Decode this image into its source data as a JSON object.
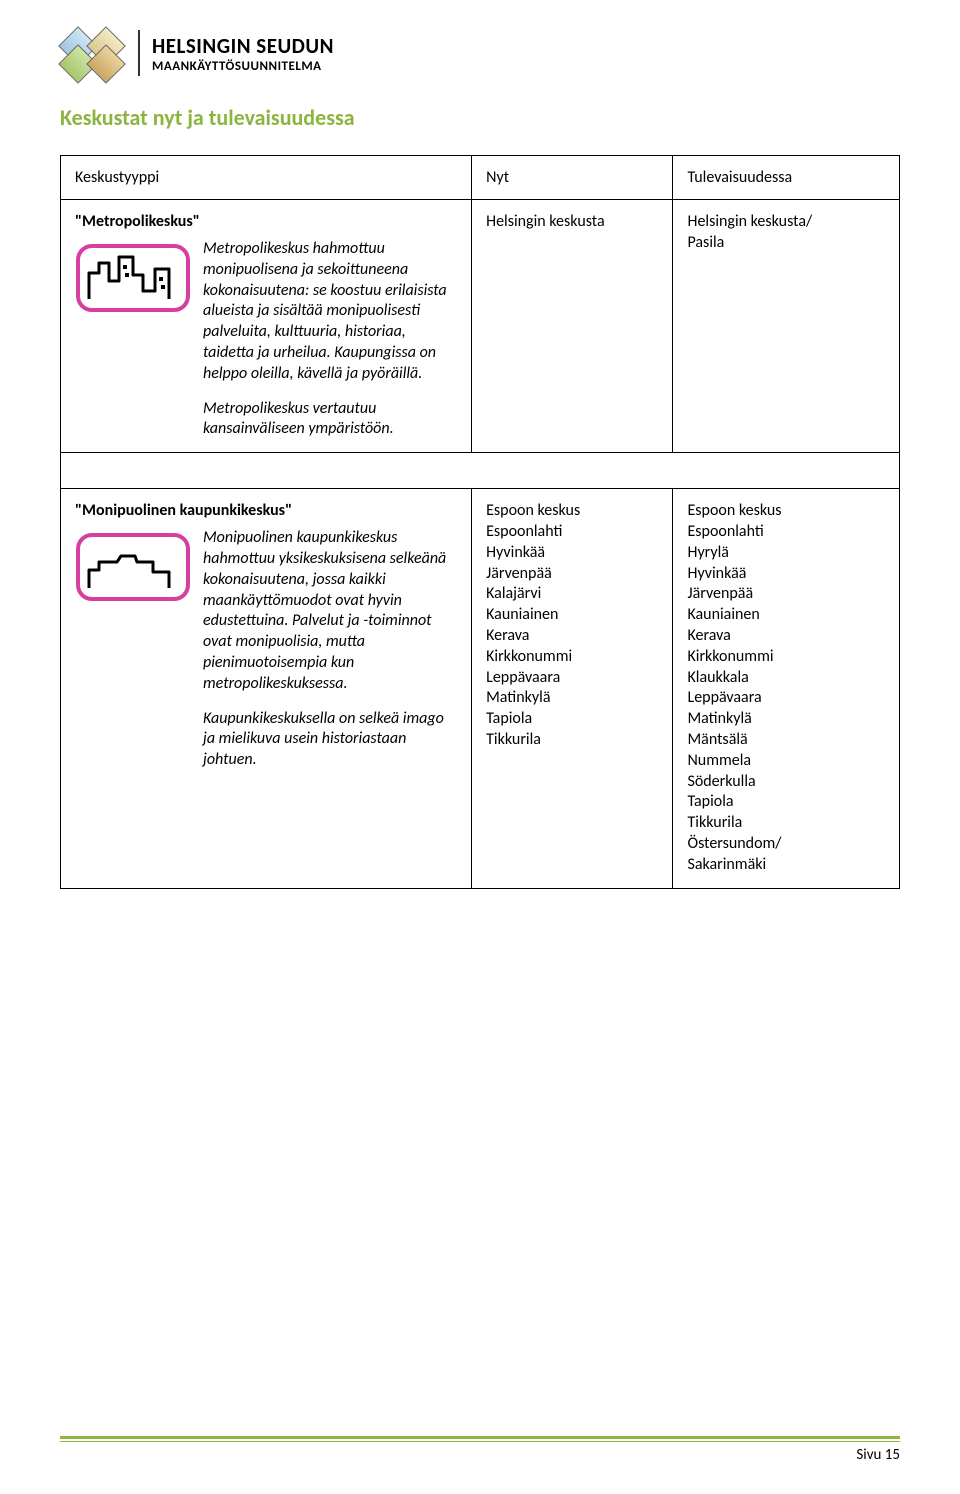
{
  "header": {
    "line1": "HELSINGIN SEUDUN",
    "line2": "MAANKÄYTTÖSUUNNITELMA"
  },
  "page_title": "Keskustat nyt ja tulevaisuudessa",
  "page_title_color": "#8ab53f",
  "table": {
    "columns": [
      "Keskustyyppi",
      "Nyt",
      "Tulevaisuudessa"
    ],
    "rows": [
      {
        "title": "\"Metropolikeskus\"",
        "icon_border_color": "#d63fa0",
        "desc_paragraphs": [
          "Metropolikeskus hahmottuu monipuolisena ja sekoittuneena kokonaisuutena: se koostuu erilaisista alueista ja sisältää monipuolisesti palveluita, kulttuuria, historiaa, taidetta ja urheilua. Kaupungissa on helppo oleilla, kävellä ja pyöräillä.",
          "Metropolikeskus vertautuu kansainväliseen ympäristöön."
        ],
        "nyt": [
          "Helsingin keskusta"
        ],
        "tulevaisuudessa": [
          "Helsingin keskusta/",
          "Pasila"
        ]
      },
      {
        "title": "\"Monipuolinen kaupunkikeskus\"",
        "icon_border_color": "#d63fa0",
        "desc_paragraphs": [
          "Monipuolinen kaupunkikeskus hahmottuu yksikeskuksisena selkeänä kokonaisuutena, jossa kaikki maankäyttömuodot ovat hyvin edustettuina. Palvelut ja -toiminnot ovat monipuolisia, mutta pienimuotoisempia kun metropolikeskuksessa.",
          "Kaupunkikeskuksella on selkeä imago ja mielikuva usein historiastaan johtuen."
        ],
        "nyt": [
          "Espoon keskus",
          "Espoonlahti",
          "Hyvinkää",
          "Järvenpää",
          "Kalajärvi",
          "Kauniainen",
          "Kerava",
          "Kirkkonummi",
          "Leppävaara",
          "Matinkylä",
          "Tapiola",
          "Tikkurila"
        ],
        "tulevaisuudessa": [
          "Espoon keskus",
          "Espoonlahti",
          "Hyrylä",
          "Hyvinkää",
          "Järvenpää",
          "Kauniainen",
          "Kerava",
          "Kirkkonummi",
          "Klaukkala",
          "Leppävaara",
          "Matinkylä",
          "Mäntsälä",
          "Nummela",
          "Söderkulla",
          "Tapiola",
          "Tikkurila",
          "Östersundom/",
          "Sakarinmäki"
        ]
      }
    ]
  },
  "footer": {
    "accent_color": "#8ab53f",
    "page_label": "Sivu 15"
  }
}
